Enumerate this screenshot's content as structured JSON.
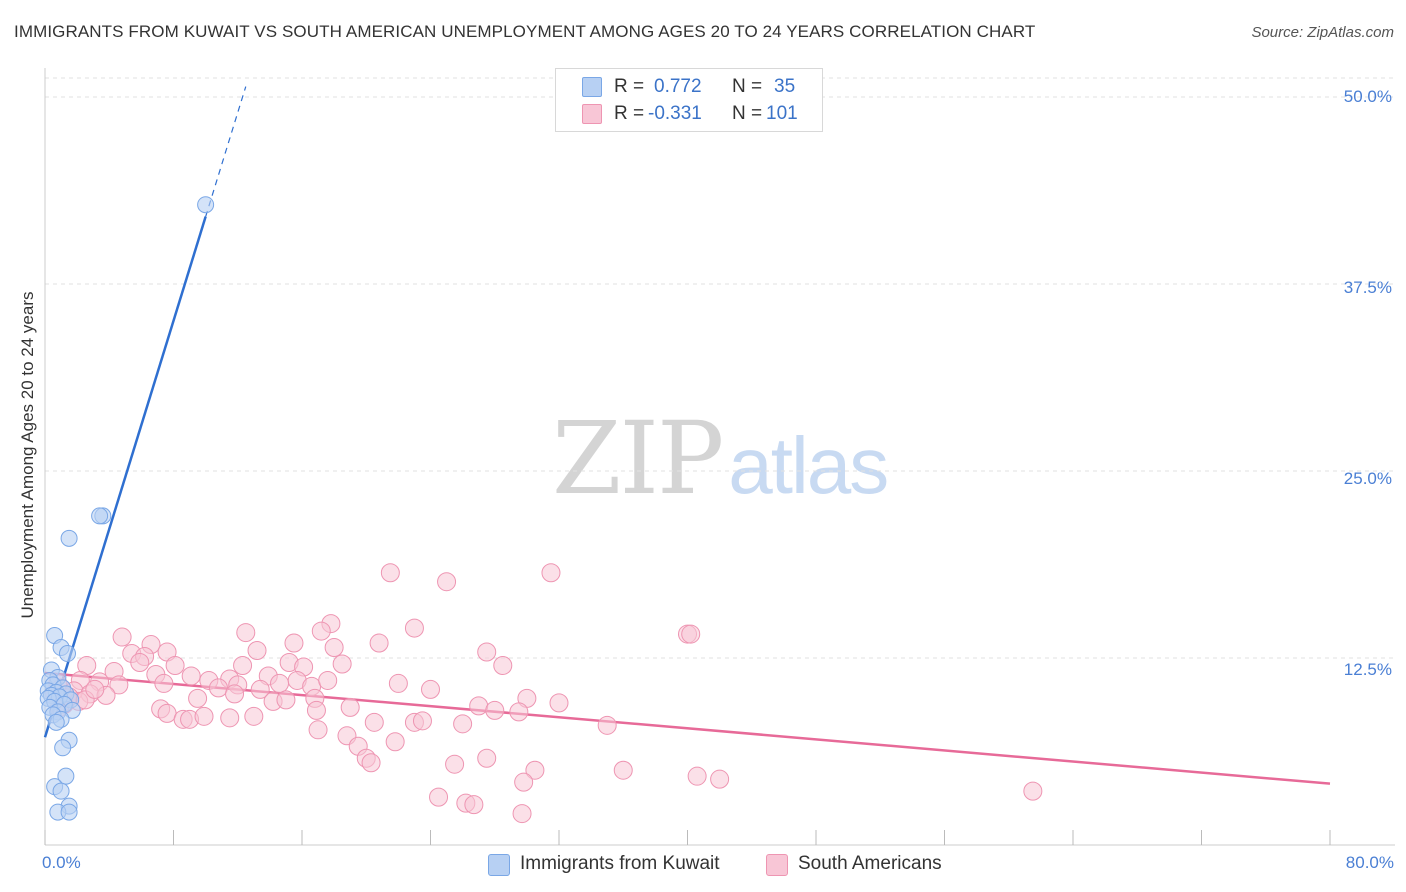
{
  "title": "IMMIGRANTS FROM KUWAIT VS SOUTH AMERICAN UNEMPLOYMENT AMONG AGES 20 TO 24 YEARS CORRELATION CHART",
  "source": "Source: ZipAtlas.com",
  "watermark": {
    "zip": "ZIP",
    "atlas": "atlas"
  },
  "legend": {
    "kuwait": {
      "r_label": "R =",
      "r_value": "0.772",
      "n_label": "N =",
      "n_value": "35"
    },
    "south": {
      "r_label": "R =",
      "r_value": "-0.331",
      "n_label": "N =",
      "n_value": "101"
    }
  },
  "bottom_legend": {
    "kuwait": "Immigrants from Kuwait",
    "south": "South Americans"
  },
  "colors": {
    "kuwait_fill": "#b7d0f3",
    "kuwait_stroke": "#7aa7e6",
    "kuwait_line": "#2f6fd0",
    "south_fill": "#f8c6d6",
    "south_stroke": "#ee95b2",
    "south_line": "#e76a98",
    "tick_text": "#4a7fd4",
    "grid": "#e2e2e2"
  },
  "chart_data": {
    "type": "scatter",
    "title": "IMMIGRANTS FROM KUWAIT VS SOUTH AMERICAN UNEMPLOYMENT AMONG AGES 20 TO 24 YEARS CORRELATION CHART",
    "xlabel": "",
    "ylabel": "Unemployment Among Ages 20 to 24 years",
    "xlim": [
      0,
      80
    ],
    "ylim": [
      0,
      50
    ],
    "x_tick_labels": [
      "0.0%",
      "80.0%"
    ],
    "y_ticks": [
      12.5,
      25.0,
      37.5,
      50.0
    ],
    "y_tick_labels": [
      "12.5%",
      "25.0%",
      "37.5%",
      "50.0%"
    ],
    "grid": true,
    "series": [
      {
        "name": "Immigrants from Kuwait",
        "r": 0.772,
        "n": 35,
        "trend": {
          "x0": 0.0,
          "y0": 7.2,
          "x1": 10.0,
          "y1": 42.0,
          "dash_to_x": 12.5
        },
        "points": [
          [
            10.0,
            42.8
          ],
          [
            3.6,
            22.0
          ],
          [
            3.4,
            22.0
          ],
          [
            1.5,
            20.5
          ],
          [
            0.6,
            14.0
          ],
          [
            1.0,
            13.2
          ],
          [
            1.4,
            12.8
          ],
          [
            0.4,
            11.7
          ],
          [
            0.8,
            11.2
          ],
          [
            0.3,
            11.0
          ],
          [
            0.5,
            10.7
          ],
          [
            1.1,
            10.5
          ],
          [
            0.2,
            10.3
          ],
          [
            0.7,
            10.2
          ],
          [
            1.3,
            10.1
          ],
          [
            0.4,
            10.0
          ],
          [
            0.9,
            9.9
          ],
          [
            0.2,
            9.8
          ],
          [
            1.6,
            9.7
          ],
          [
            0.6,
            9.6
          ],
          [
            1.2,
            9.4
          ],
          [
            0.3,
            9.2
          ],
          [
            1.7,
            9.0
          ],
          [
            0.8,
            8.9
          ],
          [
            0.5,
            8.7
          ],
          [
            1.0,
            8.4
          ],
          [
            0.7,
            8.2
          ],
          [
            1.5,
            7.0
          ],
          [
            1.1,
            6.5
          ],
          [
            1.3,
            4.6
          ],
          [
            0.6,
            3.9
          ],
          [
            1.0,
            3.6
          ],
          [
            1.5,
            2.6
          ],
          [
            0.8,
            2.2
          ],
          [
            1.5,
            2.2
          ]
        ]
      },
      {
        "name": "South Americans",
        "r": -0.331,
        "n": 101,
        "trend": {
          "x0": 0.0,
          "y0": 11.5,
          "x1": 80.0,
          "y1": 4.1
        },
        "points": [
          [
            21.5,
            18.2
          ],
          [
            25.0,
            17.6
          ],
          [
            31.5,
            18.2
          ],
          [
            40.0,
            14.1
          ],
          [
            40.2,
            14.1
          ],
          [
            17.8,
            14.8
          ],
          [
            17.2,
            14.3
          ],
          [
            23.0,
            14.5
          ],
          [
            12.5,
            14.2
          ],
          [
            4.8,
            13.9
          ],
          [
            6.6,
            13.4
          ],
          [
            15.5,
            13.5
          ],
          [
            20.8,
            13.5
          ],
          [
            27.5,
            12.9
          ],
          [
            13.2,
            13.0
          ],
          [
            18.0,
            13.2
          ],
          [
            5.4,
            12.8
          ],
          [
            6.2,
            12.6
          ],
          [
            7.6,
            12.9
          ],
          [
            28.5,
            12.0
          ],
          [
            2.6,
            12.0
          ],
          [
            5.9,
            12.2
          ],
          [
            8.1,
            12.0
          ],
          [
            12.3,
            12.0
          ],
          [
            15.2,
            12.2
          ],
          [
            16.1,
            11.9
          ],
          [
            18.5,
            12.1
          ],
          [
            4.3,
            11.6
          ],
          [
            6.9,
            11.4
          ],
          [
            9.1,
            11.3
          ],
          [
            10.2,
            11.0
          ],
          [
            11.5,
            11.1
          ],
          [
            13.9,
            11.3
          ],
          [
            15.7,
            11.0
          ],
          [
            2.2,
            11.0
          ],
          [
            3.4,
            10.9
          ],
          [
            4.6,
            10.7
          ],
          [
            7.4,
            10.8
          ],
          [
            10.8,
            10.5
          ],
          [
            12.0,
            10.7
          ],
          [
            13.4,
            10.4
          ],
          [
            14.6,
            10.8
          ],
          [
            16.6,
            10.6
          ],
          [
            17.6,
            11.0
          ],
          [
            22.0,
            10.8
          ],
          [
            24.0,
            10.4
          ],
          [
            1.0,
            10.5
          ],
          [
            1.8,
            10.3
          ],
          [
            2.8,
            10.1
          ],
          [
            3.8,
            10.0
          ],
          [
            0.6,
            10.1
          ],
          [
            1.4,
            9.8
          ],
          [
            2.1,
            9.6
          ],
          [
            1.2,
            9.4
          ],
          [
            0.9,
            9.2
          ],
          [
            9.5,
            9.8
          ],
          [
            11.8,
            10.1
          ],
          [
            14.2,
            9.6
          ],
          [
            15.0,
            9.7
          ],
          [
            16.8,
            9.8
          ],
          [
            30.0,
            9.8
          ],
          [
            32.0,
            9.5
          ],
          [
            27.0,
            9.3
          ],
          [
            28.0,
            9.0
          ],
          [
            29.5,
            8.9
          ],
          [
            7.2,
            9.1
          ],
          [
            7.6,
            8.8
          ],
          [
            8.6,
            8.4
          ],
          [
            9.0,
            8.4
          ],
          [
            9.9,
            8.6
          ],
          [
            11.5,
            8.5
          ],
          [
            13.0,
            8.6
          ],
          [
            16.9,
            9.0
          ],
          [
            19.0,
            9.2
          ],
          [
            20.5,
            8.2
          ],
          [
            23.0,
            8.2
          ],
          [
            23.5,
            8.3
          ],
          [
            26.0,
            8.1
          ],
          [
            35.0,
            8.0
          ],
          [
            17.0,
            7.7
          ],
          [
            18.8,
            7.3
          ],
          [
            19.5,
            6.6
          ],
          [
            21.8,
            6.9
          ],
          [
            20.0,
            5.8
          ],
          [
            20.3,
            5.5
          ],
          [
            25.5,
            5.4
          ],
          [
            27.5,
            5.8
          ],
          [
            30.5,
            5.0
          ],
          [
            36.0,
            5.0
          ],
          [
            40.6,
            4.6
          ],
          [
            42.0,
            4.4
          ],
          [
            29.8,
            4.2
          ],
          [
            61.5,
            3.6
          ],
          [
            24.5,
            3.2
          ],
          [
            26.2,
            2.8
          ],
          [
            26.7,
            2.7
          ],
          [
            29.7,
            2.1
          ],
          [
            1.5,
            9.9
          ],
          [
            2.5,
            9.7
          ],
          [
            3.1,
            10.4
          ],
          [
            0.8,
            10.8
          ]
        ]
      }
    ]
  }
}
